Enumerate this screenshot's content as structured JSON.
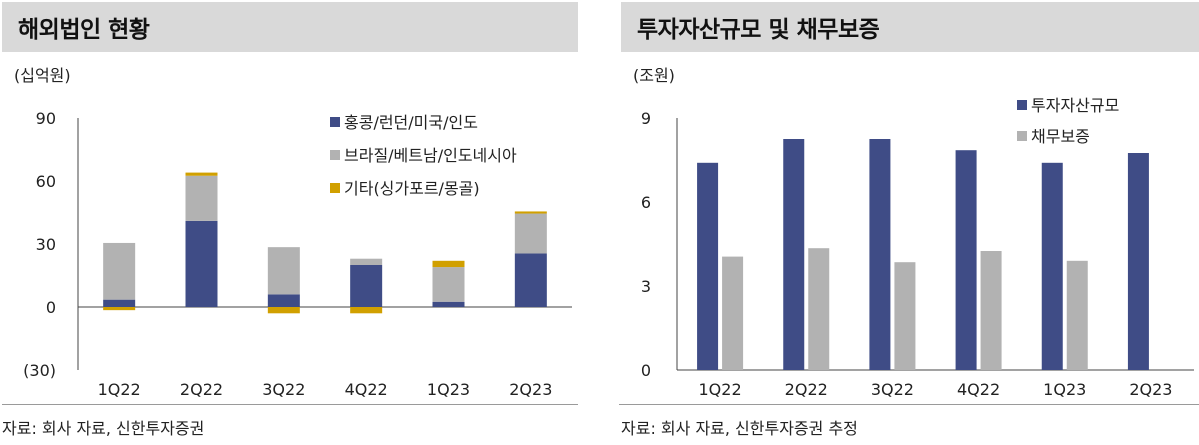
{
  "left": {
    "title": "해외법인 현황",
    "unit": "(십억원)",
    "source": "자료: 회사 자료, 신한투자증권"
  },
  "right": {
    "title": "투자자산규모 및 채무보증",
    "unit": "(조원)",
    "source": "자료: 회사 자료, 신한투자증권 추정"
  },
  "colors": {
    "navy": "#3f4c86",
    "gray": "#b2b2b2",
    "gold": "#d1a000"
  },
  "chart_data": [
    {
      "type": "bar",
      "stacked": true,
      "categories": [
        "1Q22",
        "2Q22",
        "3Q22",
        "4Q22",
        "1Q23",
        "2Q23"
      ],
      "y_tick_labels": [
        "90",
        "60",
        "30",
        "0",
        "(30)"
      ],
      "ylim": [
        -30,
        90
      ],
      "legend_position": "top-right",
      "series": [
        {
          "name": "홍콩/런던/미국/인도",
          "color": "#3f4c86",
          "values": [
            3.5,
            41,
            6,
            20,
            2.5,
            25.5
          ]
        },
        {
          "name": "브라질/베트남/인도네시아",
          "color": "#b2b2b2",
          "values": [
            27,
            21.5,
            22.5,
            3,
            16.5,
            19
          ]
        },
        {
          "name": "기타(싱가포르/몽골)",
          "color": "#d1a000",
          "values": [
            -1.5,
            1.5,
            -3,
            -3,
            3,
            1
          ]
        }
      ]
    },
    {
      "type": "bar",
      "stacked": false,
      "categories": [
        "1Q22",
        "2Q22",
        "3Q22",
        "4Q22",
        "1Q23",
        "2Q23"
      ],
      "y_tick_labels": [
        "9",
        "6",
        "3",
        "0"
      ],
      "ylim": [
        0,
        9
      ],
      "legend_position": "top-right",
      "series": [
        {
          "name": "투자자산규모",
          "color": "#3f4c86",
          "values": [
            7.4,
            8.25,
            8.25,
            7.85,
            7.4,
            7.75
          ]
        },
        {
          "name": "채무보증",
          "color": "#b2b2b2",
          "values": [
            4.05,
            4.35,
            3.85,
            4.25,
            3.9,
            null
          ]
        }
      ]
    }
  ]
}
